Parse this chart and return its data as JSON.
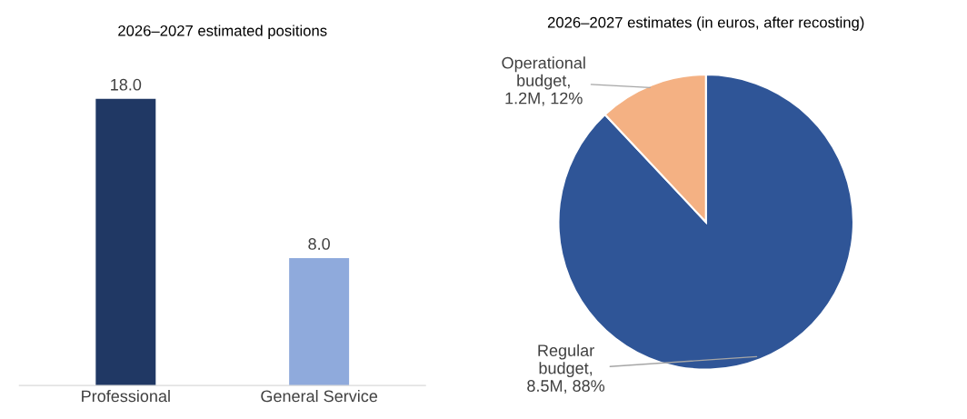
{
  "chart_data": [
    {
      "type": "bar",
      "title": "2026–2027 estimated positions",
      "categories": [
        "Professional",
        "General Service"
      ],
      "values": [
        18.0,
        8.0
      ],
      "value_labels": [
        "18.0",
        "8.0"
      ],
      "colors": [
        "#203864",
        "#8faadc"
      ],
      "grid": false,
      "legend": false
    },
    {
      "type": "pie",
      "title": "2026–2027 estimates (in euros, after recosting)",
      "categories": [
        "Regular budget, 8.5M, 88%",
        "Operational budget, 1.2M, 12%"
      ],
      "values": [
        88,
        12
      ],
      "colors": [
        "#2f5597",
        "#f4b183"
      ],
      "legend": false
    }
  ]
}
